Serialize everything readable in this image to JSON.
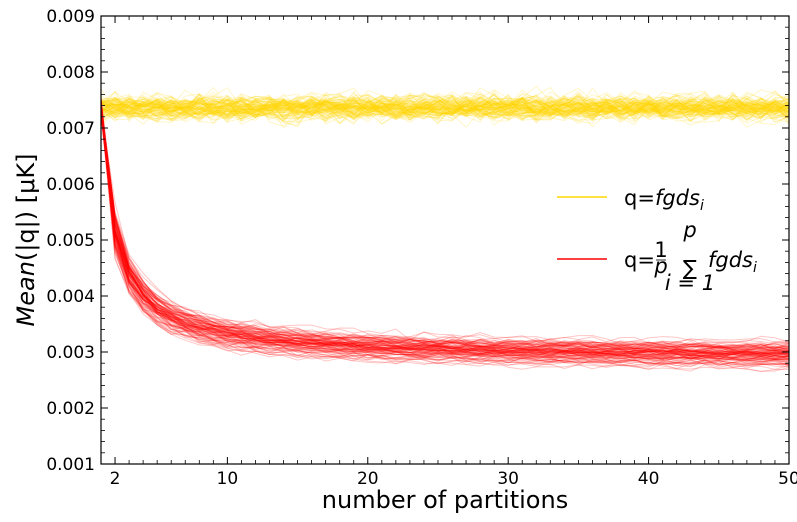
{
  "chart_data": {
    "type": "line",
    "title": "",
    "xlabel": "number of partitions",
    "ylabel_prefix": "Mean",
    "ylabel_rest": "(|q|)  [μK]",
    "xlim": [
      1,
      50
    ],
    "ylim": [
      0.001,
      0.009
    ],
    "x_ticks": [
      2,
      10,
      20,
      30,
      40,
      50
    ],
    "x_tick_labels": [
      "2",
      "10",
      "20",
      "30",
      "40",
      "50"
    ],
    "y_ticks": [
      0.001,
      0.002,
      0.003,
      0.004,
      0.005,
      0.006,
      0.007,
      0.008,
      0.009
    ],
    "y_tick_labels": [
      "0.001",
      "0.002",
      "0.003",
      "0.004",
      "0.005",
      "0.006",
      "0.007",
      "0.008",
      "0.009"
    ],
    "x_start": 1,
    "x_end": 50,
    "legend_position": "center-right",
    "series": [
      {
        "name": "q=fgds_i",
        "label_plain": "q=",
        "label_italic": "fgds",
        "label_sub": "i",
        "color": "#FFD700",
        "realizations": 100,
        "mean_curve": {
          "model": "constant",
          "value": 0.00737
        },
        "spread": 0.00018
      },
      {
        "name": "q=(1/p) Σ_{i=1}^{p} fgds_i",
        "label_plain": "q=",
        "label_frac_num": "1",
        "label_frac_den": "p",
        "label_sum_symbol": "∑",
        "label_sum_upper": "p",
        "label_sum_lower": "i = 1",
        "label_italic": "fgds",
        "label_sub": "i",
        "color": "#FF0000",
        "realizations": 100,
        "mean_curve": {
          "model": "asymptote_plus_decay",
          "asymptote": 0.00285,
          "amplitude": 0.00452,
          "exponent": 1.0,
          "start_value": 0.00737
        },
        "spread_fraction": 0.045
      }
    ]
  }
}
